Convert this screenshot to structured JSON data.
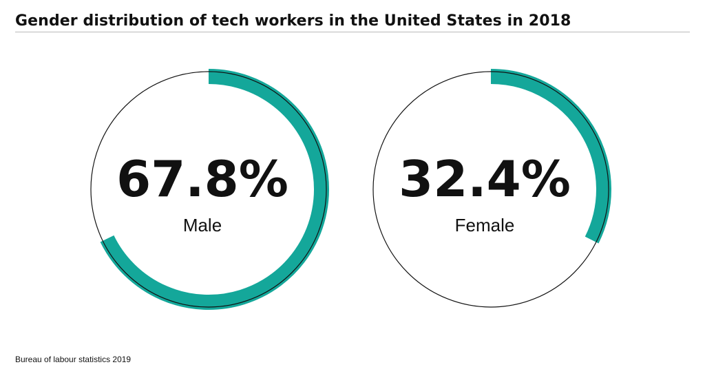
{
  "chart_data": {
    "type": "pie",
    "title": "Gender distribution of tech workers in the United States in 2018",
    "categories": [
      "Male",
      "Female"
    ],
    "series": [
      {
        "name": "",
        "values": [
          67.8,
          32.4
        ]
      }
    ],
    "value_labels": [
      "67.8%",
      "32.4%"
    ],
    "unit": "%",
    "colors": {
      "arc": "#14a79a",
      "outline": "#111111",
      "text": "#111111",
      "rule": "#b9b9b9"
    },
    "legend": "none"
  },
  "source": "Bureau of labour statistics 2019"
}
